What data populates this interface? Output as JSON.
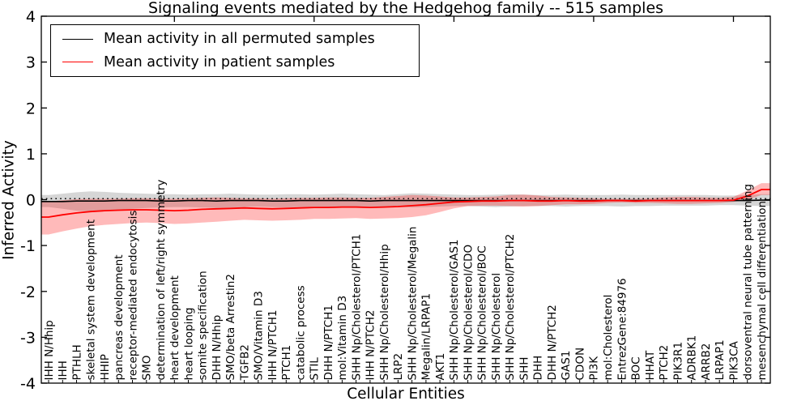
{
  "title": "Signaling events mediated by the Hedgehog family -- 515 samples",
  "x_axis": {
    "label": "Cellular Entities"
  },
  "y_axis": {
    "label": "Inferred Activity",
    "ticks": [
      4,
      3,
      2,
      1,
      0,
      -1,
      -2,
      -3,
      -4
    ],
    "range": [
      -4,
      4
    ]
  },
  "legend": {
    "items": [
      {
        "label": "Mean activity in all permuted samples",
        "color": "#000000"
      },
      {
        "label": "Mean activity in patient samples",
        "color": "#ff0000"
      }
    ]
  },
  "chart_data": {
    "type": "line",
    "title": "Signaling events mediated by the Hedgehog family -- 515 samples",
    "xlabel": "Cellular Entities",
    "ylabel": "Inferred Activity",
    "ylim": [
      -4,
      4
    ],
    "grid": false,
    "legend_position": "upper left",
    "zero_reference_line": {
      "value": 0,
      "style": "dotted",
      "color": "#000000"
    },
    "categories": [
      "IHH N/Hhip",
      "IHH",
      "PTHLH",
      "skeletal system development",
      "HHIP",
      "pancreas development",
      "receptor-mediated endocytosis",
      "SMO",
      "determination of left/right symmetry",
      "heart development",
      "heart looping",
      "somite specification",
      "DHH N/Hhip",
      "SMO/beta Arrestin2",
      "TGFB2",
      "SMO/Vitamin D3",
      "IHH N/PTCH1",
      "PTCH1",
      "catabolic process",
      "STIL",
      "DHH N/PTCH1",
      "mol:Vitamin D3",
      "SHH Np/Cholesterol/PTCH1",
      "IHH N/PTCH2",
      "SHH Np/Cholesterol/Hhip",
      "LRP2",
      "SHH Np/Cholesterol/Megalin",
      "Megalin/LRPAP1",
      "AKT1",
      "SHH Np/Cholesterol/GAS1",
      "SHH Np/Cholesterol/CDO",
      "SHH Np/Cholesterol/BOC",
      "SHH Np/Cholesterol",
      "SHH Np/Cholesterol/PTCH2",
      "SHH",
      "DHH",
      "DHH N/PTCH2",
      "GAS1",
      "CDON",
      "PI3K",
      "mol:Cholesterol",
      "EntrezGene:84976",
      "BOC",
      "HHAT",
      "PTCH2",
      "PIK3R1",
      "ADRBK1",
      "ARRB2",
      "LRPAP1",
      "PIK3CA",
      "dorsoventral neural tube patterning",
      "mesenchymal cell differentiation"
    ],
    "series": [
      {
        "name": "Mean activity in all permuted samples",
        "color": "#000000",
        "band_color": "rgba(0,0,0,0.16)",
        "values": [
          -0.04,
          -0.04,
          -0.03,
          -0.03,
          -0.03,
          -0.02,
          -0.02,
          -0.02,
          -0.03,
          -0.03,
          -0.02,
          -0.02,
          -0.03,
          -0.02,
          -0.02,
          -0.02,
          -0.03,
          -0.03,
          -0.02,
          -0.02,
          -0.02,
          -0.02,
          -0.02,
          -0.03,
          -0.02,
          -0.02,
          -0.02,
          -0.02,
          -0.02,
          -0.02,
          -0.02,
          -0.02,
          -0.02,
          -0.02,
          -0.02,
          -0.02,
          -0.02,
          -0.02,
          -0.02,
          -0.02,
          -0.02,
          -0.02,
          -0.02,
          -0.02,
          -0.02,
          -0.02,
          -0.02,
          -0.02,
          -0.02,
          -0.02,
          -0.02,
          -0.01
        ],
        "band_upper": [
          0.1,
          0.13,
          0.16,
          0.18,
          0.17,
          0.15,
          0.14,
          0.13,
          0.12,
          0.12,
          0.11,
          0.12,
          0.12,
          0.13,
          0.12,
          0.11,
          0.11,
          0.12,
          0.12,
          0.11,
          0.12,
          0.13,
          0.12,
          0.11,
          0.1,
          0.12,
          0.14,
          0.13,
          0.12,
          0.11,
          0.1,
          0.1,
          0.11,
          0.12,
          0.11,
          0.1,
          0.1,
          0.11,
          0.1,
          0.1,
          0.1,
          0.11,
          0.1,
          0.1,
          0.1,
          0.1,
          0.1,
          0.1,
          0.09,
          0.09,
          0.1,
          0.12
        ],
        "band_lower": [
          -0.16,
          -0.2,
          -0.24,
          -0.26,
          -0.24,
          -0.22,
          -0.2,
          -0.18,
          -0.17,
          -0.16,
          -0.16,
          -0.17,
          -0.18,
          -0.17,
          -0.16,
          -0.15,
          -0.16,
          -0.17,
          -0.16,
          -0.15,
          -0.16,
          -0.17,
          -0.16,
          -0.15,
          -0.15,
          -0.16,
          -0.17,
          -0.16,
          -0.15,
          -0.14,
          -0.14,
          -0.15,
          -0.16,
          -0.15,
          -0.14,
          -0.14,
          -0.14,
          -0.15,
          -0.14,
          -0.14,
          -0.14,
          -0.15,
          -0.14,
          -0.14,
          -0.13,
          -0.13,
          -0.13,
          -0.13,
          -0.12,
          -0.12,
          -0.13,
          -0.14
        ]
      },
      {
        "name": "Mean activity in patient samples",
        "color": "#ff0000",
        "band_color": "rgba(255,0,0,0.27)",
        "values": [
          -0.38,
          -0.33,
          -0.29,
          -0.26,
          -0.24,
          -0.23,
          -0.22,
          -0.22,
          -0.23,
          -0.24,
          -0.23,
          -0.21,
          -0.2,
          -0.19,
          -0.18,
          -0.19,
          -0.2,
          -0.19,
          -0.18,
          -0.17,
          -0.17,
          -0.16,
          -0.16,
          -0.17,
          -0.16,
          -0.15,
          -0.13,
          -0.11,
          -0.08,
          -0.05,
          -0.04,
          -0.03,
          -0.03,
          -0.02,
          -0.02,
          -0.03,
          -0.03,
          -0.02,
          -0.03,
          -0.03,
          -0.02,
          -0.02,
          -0.03,
          -0.02,
          -0.02,
          -0.02,
          -0.02,
          -0.02,
          -0.02,
          -0.01,
          0.08,
          0.22
        ],
        "band_upper": [
          -0.04,
          -0.01,
          0.01,
          0.02,
          0.02,
          0.02,
          0.03,
          0.03,
          0.02,
          0.02,
          0.03,
          0.04,
          0.05,
          0.04,
          0.03,
          0.03,
          0.02,
          0.03,
          0.04,
          0.04,
          0.05,
          0.05,
          0.04,
          0.04,
          0.06,
          0.08,
          0.1,
          0.09,
          0.07,
          0.05,
          0.05,
          0.06,
          0.07,
          0.1,
          0.11,
          0.09,
          0.06,
          0.05,
          0.04,
          0.03,
          0.02,
          0.02,
          0.02,
          0.03,
          0.05,
          0.06,
          0.06,
          0.05,
          0.04,
          0.06,
          0.2,
          0.36
        ],
        "band_lower": [
          -0.76,
          -0.69,
          -0.63,
          -0.58,
          -0.55,
          -0.53,
          -0.51,
          -0.5,
          -0.51,
          -0.53,
          -0.52,
          -0.5,
          -0.48,
          -0.46,
          -0.44,
          -0.45,
          -0.46,
          -0.45,
          -0.44,
          -0.42,
          -0.42,
          -0.41,
          -0.4,
          -0.42,
          -0.41,
          -0.4,
          -0.38,
          -0.34,
          -0.27,
          -0.19,
          -0.14,
          -0.13,
          -0.13,
          -0.14,
          -0.15,
          -0.14,
          -0.12,
          -0.1,
          -0.1,
          -0.09,
          -0.07,
          -0.06,
          -0.07,
          -0.07,
          -0.08,
          -0.09,
          -0.09,
          -0.08,
          -0.07,
          -0.05,
          0.0,
          0.1
        ]
      }
    ]
  }
}
